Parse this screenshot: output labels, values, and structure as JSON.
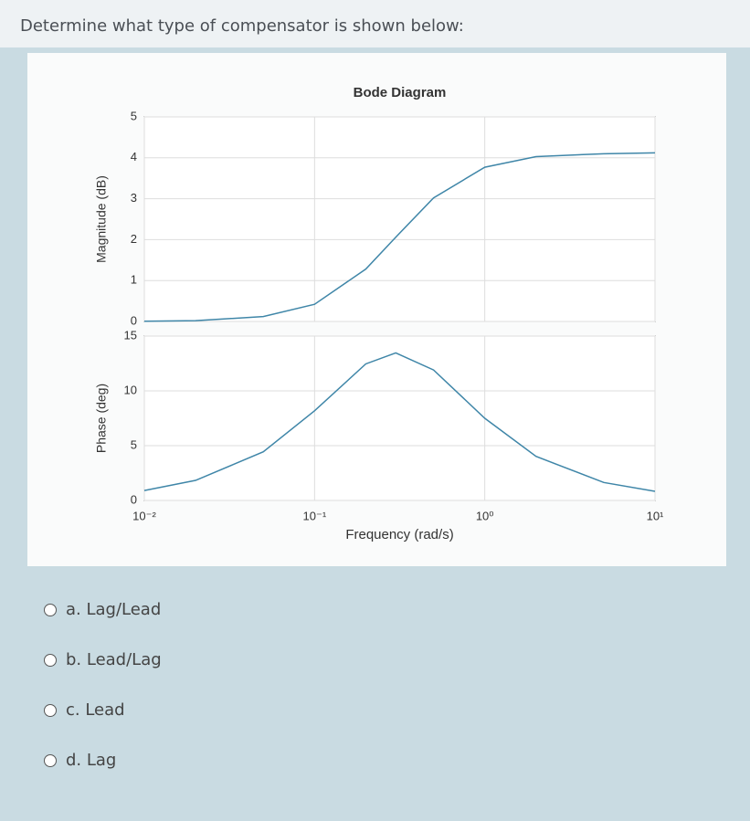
{
  "question": "Determine what type of compensator is shown below:",
  "chart_data": [
    {
      "type": "line",
      "title": "Bode Diagram",
      "ylabel": "Magnitude (dB)",
      "xscale": "log",
      "grid": true,
      "x": [
        0.01,
        0.02,
        0.05,
        0.1,
        0.2,
        0.3,
        0.5,
        1,
        2,
        5,
        10
      ],
      "values": [
        0.005,
        0.019,
        0.12,
        0.42,
        1.28,
        2.06,
        3.02,
        3.77,
        4.03,
        4.1,
        4.12
      ],
      "color": "#3f86a8",
      "xlim": [
        0.01,
        10
      ],
      "ylim": [
        0,
        5
      ],
      "yticks": [
        0,
        1,
        2,
        3,
        4,
        5
      ]
    },
    {
      "type": "line",
      "ylabel": "Phase (deg)",
      "xlabel": "Frequency (rad/s)",
      "xscale": "log",
      "grid": true,
      "x": [
        0.01,
        0.02,
        0.05,
        0.1,
        0.2,
        0.3,
        0.5,
        1,
        2,
        5,
        10
      ],
      "values": [
        0.91,
        1.83,
        4.44,
        8.18,
        12.46,
        13.46,
        11.91,
        7.5,
        4.02,
        1.64,
        0.83
      ],
      "color": "#3f86a8",
      "xlim": [
        0.01,
        10
      ],
      "ylim": [
        0,
        15
      ],
      "yticks": [
        0,
        5,
        10,
        15
      ],
      "xticks": [
        {
          "value": 0.01,
          "label": "10⁻²"
        },
        {
          "value": 0.1,
          "label": "10⁻¹"
        },
        {
          "value": 1,
          "label": "10⁰"
        },
        {
          "value": 10,
          "label": "10¹"
        }
      ]
    }
  ],
  "options": [
    "a. Lag/Lead",
    "b. Lead/Lag",
    "c. Lead",
    "d. Lag"
  ]
}
